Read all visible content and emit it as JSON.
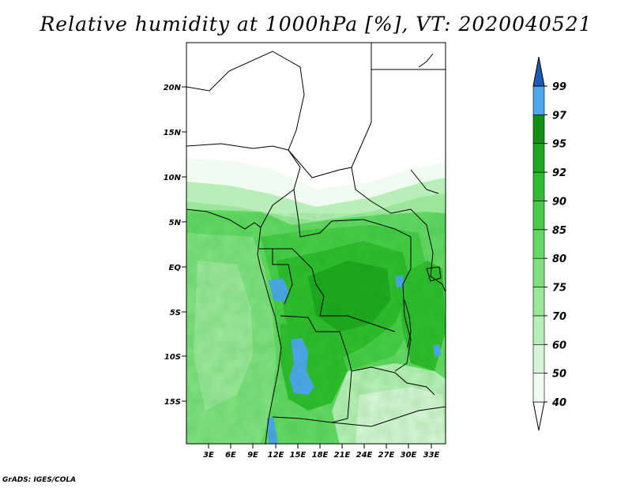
{
  "title": "Relative humidity at 1000hPa [%], VT: 2020040521",
  "credit": "GrADS: IGES/COLA",
  "map": {
    "lat_ticks": [
      "20N",
      "15N",
      "10N",
      "5N",
      "EQ",
      "5S",
      "10S",
      "15S"
    ],
    "lon_ticks": [
      "3E",
      "6E",
      "9E",
      "12E",
      "15E",
      "18E",
      "21E",
      "24E",
      "27E",
      "30E",
      "33E"
    ]
  },
  "colorbar": {
    "labels": [
      "40",
      "50",
      "60",
      "70",
      "75",
      "80",
      "85",
      "90",
      "92",
      "95",
      "97",
      "99"
    ],
    "colors": {
      "c40": "#f0fcf0",
      "c50": "#d6f5d6",
      "c60": "#b8efb8",
      "c70": "#9ae79a",
      "c75": "#80e080",
      "c80": "#63d863",
      "c85": "#48cc48",
      "c90": "#2fbc2f",
      "c92": "#1fa81f",
      "c95": "#148f14",
      "c97": "#4da6ee",
      "c99": "#2a76d8",
      "c100": "#1e5bb8"
    }
  }
}
